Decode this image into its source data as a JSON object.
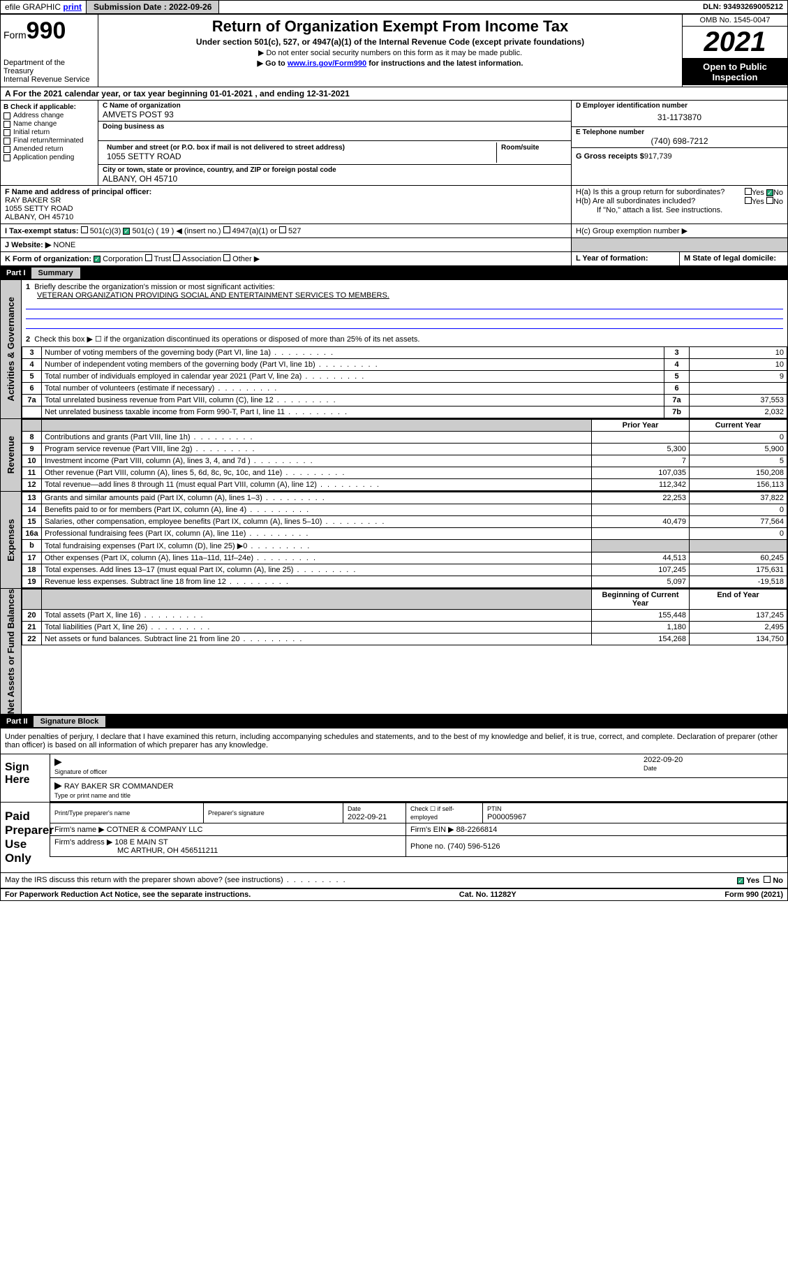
{
  "topbar": {
    "efile_label": "efile GRAPHIC",
    "print": "print",
    "sub_label": "Submission Date :",
    "sub_date": "2022-09-26",
    "dln_label": "DLN:",
    "dln": "93493269005212"
  },
  "header": {
    "form_word": "Form",
    "form_num": "990",
    "dept": "Department of the Treasury",
    "irs": "Internal Revenue Service",
    "title": "Return of Organization Exempt From Income Tax",
    "subtitle": "Under section 501(c), 527, or 4947(a)(1) of the Internal Revenue Code (except private foundations)",
    "note1": "▶ Do not enter social security numbers on this form as it may be made public.",
    "note2_pre": "▶ Go to ",
    "note2_link": "www.irs.gov/Form990",
    "note2_post": " for instructions and the latest information.",
    "omb": "OMB No. 1545-0047",
    "year": "2021",
    "open": "Open to Public Inspection"
  },
  "rowA": "A For the 2021 calendar year, or tax year beginning 01-01-2021   , and ending 12-31-2021",
  "colB": {
    "hdr": "B Check if applicable:",
    "items": [
      "Address change",
      "Name change",
      "Initial return",
      "Final return/terminated",
      "Amended return",
      "Application pending"
    ]
  },
  "colC": {
    "name_label": "C Name of organization",
    "name": "AMVETS POST 93",
    "dba_label": "Doing business as",
    "addr_label": "Number and street (or P.O. box if mail is not delivered to street address)",
    "room_label": "Room/suite",
    "addr": "1055 SETTY ROAD",
    "city_label": "City or town, state or province, country, and ZIP or foreign postal code",
    "city": "ALBANY, OH  45710"
  },
  "colD": {
    "ein_label": "D Employer identification number",
    "ein": "31-1173870",
    "tel_label": "E Telephone number",
    "tel": "(740) 698-7212",
    "gross_label": "G Gross receipts $",
    "gross": "917,739"
  },
  "rowF": {
    "label": "F Name and address of principal officer:",
    "name": "RAY BAKER SR",
    "addr1": "1055 SETTY ROAD",
    "addr2": "ALBANY, OH  45710"
  },
  "rowH": {
    "ha": "H(a)  Is this a group return for subordinates?",
    "hb": "H(b)  Are all subordinates included?",
    "hb_note": "If \"No,\" attach a list. See instructions.",
    "hc": "H(c)  Group exemption number ▶",
    "yes": "Yes",
    "no": "No"
  },
  "rowI": {
    "label": "I   Tax-exempt status:",
    "o1": "501(c)(3)",
    "o2": "501(c) ( 19 ) ◀ (insert no.)",
    "o3": "4947(a)(1) or",
    "o4": "527"
  },
  "rowJ": {
    "label": "J   Website: ▶",
    "val": "NONE"
  },
  "rowK": {
    "label": "K Form of organization:",
    "o1": "Corporation",
    "o2": "Trust",
    "o3": "Association",
    "o4": "Other ▶"
  },
  "rowL": {
    "label": "L Year of formation:"
  },
  "rowM": {
    "label": "M State of legal domicile:"
  },
  "part1": {
    "part": "Part I",
    "title": "Summary"
  },
  "summary": {
    "l1_label": "Briefly describe the organization's mission or most significant activities:",
    "l1_text": "VETERAN ORGANIZATION PROVIDING SOCIAL AND ENTERTAINMENT SERVICES TO MEMBERS.",
    "l2": "Check this box ▶ ☐  if the organization discontinued its operations or disposed of more than 25% of its net assets.",
    "vtab1": "Activities & Governance",
    "rows_gov": [
      {
        "n": "3",
        "d": "Number of voting members of the governing body (Part VI, line 1a)",
        "box": "3",
        "v": "10"
      },
      {
        "n": "4",
        "d": "Number of independent voting members of the governing body (Part VI, line 1b)",
        "box": "4",
        "v": "10"
      },
      {
        "n": "5",
        "d": "Total number of individuals employed in calendar year 2021 (Part V, line 2a)",
        "box": "5",
        "v": "9"
      },
      {
        "n": "6",
        "d": "Total number of volunteers (estimate if necessary)",
        "box": "6",
        "v": ""
      },
      {
        "n": "7a",
        "d": "Total unrelated business revenue from Part VIII, column (C), line 12",
        "box": "7a",
        "v": "37,553"
      },
      {
        "n": "",
        "d": "Net unrelated business taxable income from Form 990-T, Part I, line 11",
        "box": "7b",
        "v": "2,032"
      }
    ],
    "prior": "Prior Year",
    "current": "Current Year",
    "vtab2": "Revenue",
    "rows_rev": [
      {
        "n": "8",
        "d": "Contributions and grants (Part VIII, line 1h)",
        "p": "",
        "c": "0"
      },
      {
        "n": "9",
        "d": "Program service revenue (Part VIII, line 2g)",
        "p": "5,300",
        "c": "5,900"
      },
      {
        "n": "10",
        "d": "Investment income (Part VIII, column (A), lines 3, 4, and 7d )",
        "p": "7",
        "c": "5"
      },
      {
        "n": "11",
        "d": "Other revenue (Part VIII, column (A), lines 5, 6d, 8c, 9c, 10c, and 11e)",
        "p": "107,035",
        "c": "150,208"
      },
      {
        "n": "12",
        "d": "Total revenue—add lines 8 through 11 (must equal Part VIII, column (A), line 12)",
        "p": "112,342",
        "c": "156,113"
      }
    ],
    "vtab3": "Expenses",
    "rows_exp": [
      {
        "n": "13",
        "d": "Grants and similar amounts paid (Part IX, column (A), lines 1–3)",
        "p": "22,253",
        "c": "37,822"
      },
      {
        "n": "14",
        "d": "Benefits paid to or for members (Part IX, column (A), line 4)",
        "p": "",
        "c": "0"
      },
      {
        "n": "15",
        "d": "Salaries, other compensation, employee benefits (Part IX, column (A), lines 5–10)",
        "p": "40,479",
        "c": "77,564"
      },
      {
        "n": "16a",
        "d": "Professional fundraising fees (Part IX, column (A), line 11e)",
        "p": "",
        "c": "0"
      },
      {
        "n": "b",
        "d": "Total fundraising expenses (Part IX, column (D), line 25) ▶0",
        "p": "shade",
        "c": "shade"
      },
      {
        "n": "17",
        "d": "Other expenses (Part IX, column (A), lines 11a–11d, 11f–24e)",
        "p": "44,513",
        "c": "60,245"
      },
      {
        "n": "18",
        "d": "Total expenses. Add lines 13–17 (must equal Part IX, column (A), line 25)",
        "p": "107,245",
        "c": "175,631"
      },
      {
        "n": "19",
        "d": "Revenue less expenses. Subtract line 18 from line 12",
        "p": "5,097",
        "c": "-19,518"
      }
    ],
    "begin": "Beginning of Current Year",
    "end": "End of Year",
    "vtab4": "Net Assets or Fund Balances",
    "rows_net": [
      {
        "n": "20",
        "d": "Total assets (Part X, line 16)",
        "p": "155,448",
        "c": "137,245"
      },
      {
        "n": "21",
        "d": "Total liabilities (Part X, line 26)",
        "p": "1,180",
        "c": "2,495"
      },
      {
        "n": "22",
        "d": "Net assets or fund balances. Subtract line 21 from line 20",
        "p": "154,268",
        "c": "134,750"
      }
    ]
  },
  "part2": {
    "part": "Part II",
    "title": "Signature Block"
  },
  "penalties": "Under penalties of perjury, I declare that I have examined this return, including accompanying schedules and statements, and to the best of my knowledge and belief, it is true, correct, and complete. Declaration of preparer (other than officer) is based on all information of which preparer has any knowledge.",
  "sign": {
    "here": "Sign Here",
    "sig_officer": "Signature of officer",
    "date": "Date",
    "date_val": "2022-09-20",
    "name": "RAY BAKER SR COMMANDER",
    "name_label": "Type or print name and title"
  },
  "prep": {
    "title": "Paid Preparer Use Only",
    "c1": "Print/Type preparer's name",
    "c2": "Preparer's signature",
    "c3": "Date",
    "c3v": "2022-09-21",
    "c4": "Check ☐ if self-employed",
    "c5": "PTIN",
    "c5v": "P00005967",
    "firm_name_l": "Firm's name    ▶",
    "firm_name": "COTNER & COMPANY LLC",
    "firm_ein_l": "Firm's EIN ▶",
    "firm_ein": "88-2266814",
    "firm_addr_l": "Firm's address ▶",
    "firm_addr1": "108 E MAIN ST",
    "firm_addr2": "MC ARTHUR, OH  456511211",
    "firm_phone_l": "Phone no.",
    "firm_phone": "(740) 596-5126"
  },
  "discuss": {
    "q": "May the IRS discuss this return with the preparer shown above? (see instructions)",
    "yes": "Yes",
    "no": "No"
  },
  "footer": {
    "left": "For Paperwork Reduction Act Notice, see the separate instructions.",
    "center": "Cat. No. 11282Y",
    "right": "Form 990 (2021)"
  }
}
